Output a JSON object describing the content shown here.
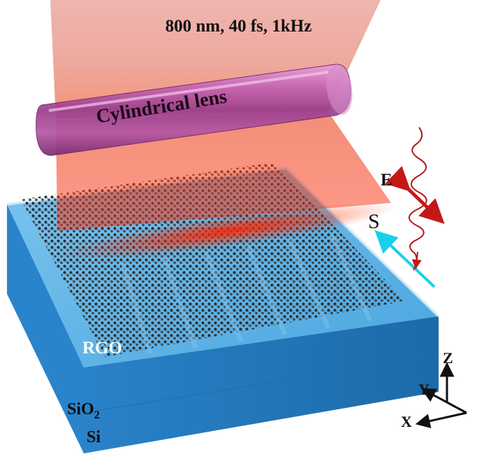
{
  "labels": {
    "laser": "800 nm, 40 fs, 1kHz",
    "lens": "Cylindrical lens",
    "rgo": "RGO",
    "sio2_main": "SiO",
    "sio2_sub": "2",
    "si": "Si",
    "field": "E",
    "scan": "S",
    "axis_z": "Z",
    "axis_y": "Y",
    "axis_x": "X"
  },
  "colors": {
    "laser_beam": "#d94a3a",
    "laser_hot": "#ff3a10",
    "lens": "#b04d9c",
    "substrate_top": "#5fb4e8",
    "substrate_front": "#2e8fd6",
    "substrate_side": "#1f74b8",
    "rgo": "#262626",
    "field_arrow": "#c41818",
    "scan_arrow": "#19d0ea",
    "axes": "#111111"
  }
}
